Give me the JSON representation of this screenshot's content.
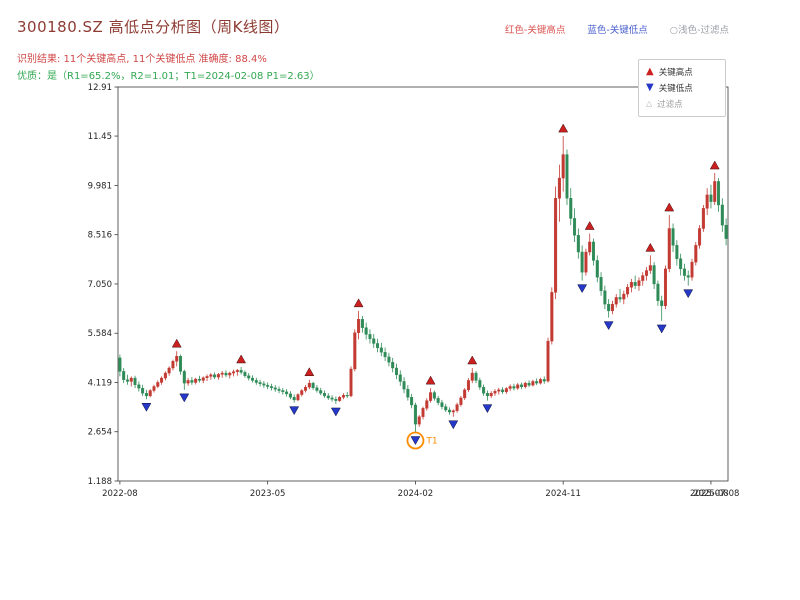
{
  "header": {
    "title": "300180.SZ 高低点分析图（周K线图）",
    "legend_top": {
      "high": "红色-关键高点",
      "low": "蓝色-关键低点",
      "filter": "○浅色-过滤点"
    },
    "result_line": "识别结果: 11个关键高点, 11个关键低点  准确度: 88.4%",
    "quality_line": "优质：是（R1=65.2%，R2=1.01；T1=2024-02-08 P1=2.63）"
  },
  "colors": {
    "up_candle": "#c23a32",
    "down_candle": "#2e8b57",
    "key_high": "#cc2020",
    "key_low": "#2538c8",
    "t1": "#ff8c00",
    "axis": "#3a3a3a",
    "tick_text": "#262626",
    "title_text": "#8d3b32",
    "result_text": "#d04545",
    "quality_text": "#33a853"
  },
  "inner_legend": {
    "items": [
      {
        "label": "关键高点",
        "marker": "up-triangle",
        "color": "#cc2020"
      },
      {
        "label": "关键低点",
        "marker": "down-triangle",
        "color": "#2538c8"
      },
      {
        "label": "过滤点",
        "marker": "open-triangle",
        "color": "#b5b5b5"
      }
    ]
  },
  "chart_data": {
    "type": "candlestick",
    "title": "300180.SZ 高低点分析图（周K线图）",
    "ylim": [
      1.188,
      12.91
    ],
    "grid": false,
    "y_ticks": [
      {
        "label": "1.188",
        "value": 1.188
      },
      {
        "label": "2.654",
        "value": 2.654
      },
      {
        "label": "4.119",
        "value": 4.119
      },
      {
        "label": "5.584",
        "value": 5.584
      },
      {
        "label": "7.050",
        "value": 7.05
      },
      {
        "label": "8.516",
        "value": 8.516
      },
      {
        "label": "9.981",
        "value": 9.981
      },
      {
        "label": "11.45",
        "value": 11.45
      },
      {
        "label": "12.91",
        "value": 12.91
      }
    ],
    "x_ticks": [
      {
        "label": "2022-08",
        "week": 0
      },
      {
        "label": "2023-05",
        "week": 39
      },
      {
        "label": "2024-02",
        "week": 78
      },
      {
        "label": "2024-11",
        "week": 117
      },
      {
        "label": "2025-08",
        "week": 156
      }
    ],
    "extra_x_label": {
      "label": "2025-07-08",
      "week": 157
    },
    "candles": [
      [
        4.85,
        4.95,
        4.3,
        4.45
      ],
      [
        4.45,
        4.55,
        4.1,
        4.2
      ],
      [
        4.2,
        4.35,
        4.05,
        4.15
      ],
      [
        4.15,
        4.3,
        4.0,
        4.25
      ],
      [
        4.25,
        4.32,
        3.95,
        4.05
      ],
      [
        4.05,
        4.15,
        3.85,
        3.95
      ],
      [
        3.95,
        4.05,
        3.72,
        3.8
      ],
      [
        3.8,
        3.9,
        3.62,
        3.72
      ],
      [
        3.72,
        3.92,
        3.68,
        3.88
      ],
      [
        3.88,
        4.05,
        3.82,
        4.0
      ],
      [
        4.0,
        4.18,
        3.95,
        4.12
      ],
      [
        4.12,
        4.3,
        4.05,
        4.25
      ],
      [
        4.25,
        4.45,
        4.18,
        4.4
      ],
      [
        4.4,
        4.6,
        4.32,
        4.55
      ],
      [
        4.55,
        4.8,
        4.48,
        4.75
      ],
      [
        4.75,
        5.05,
        4.6,
        4.9
      ],
      [
        4.9,
        4.95,
        4.35,
        4.45
      ],
      [
        4.45,
        4.5,
        3.9,
        4.1
      ],
      [
        4.1,
        4.25,
        4.02,
        4.18
      ],
      [
        4.18,
        4.28,
        4.05,
        4.12
      ],
      [
        4.12,
        4.26,
        4.06,
        4.22
      ],
      [
        4.22,
        4.32,
        4.12,
        4.18
      ],
      [
        4.18,
        4.3,
        4.1,
        4.26
      ],
      [
        4.26,
        4.36,
        4.16,
        4.3
      ],
      [
        4.3,
        4.4,
        4.2,
        4.35
      ],
      [
        4.35,
        4.42,
        4.22,
        4.28
      ],
      [
        4.28,
        4.4,
        4.2,
        4.36
      ],
      [
        4.36,
        4.46,
        4.26,
        4.4
      ],
      [
        4.4,
        4.48,
        4.28,
        4.34
      ],
      [
        4.34,
        4.44,
        4.24,
        4.4
      ],
      [
        4.4,
        4.5,
        4.3,
        4.44
      ],
      [
        4.44,
        4.52,
        4.32,
        4.48
      ],
      [
        4.48,
        4.58,
        4.36,
        4.42
      ],
      [
        4.42,
        4.48,
        4.26,
        4.32
      ],
      [
        4.32,
        4.4,
        4.18,
        4.25
      ],
      [
        4.25,
        4.33,
        4.12,
        4.18
      ],
      [
        4.18,
        4.26,
        4.05,
        4.12
      ],
      [
        4.12,
        4.2,
        4.0,
        4.08
      ],
      [
        4.08,
        4.16,
        3.96,
        4.04
      ],
      [
        4.04,
        4.12,
        3.92,
        4.0
      ],
      [
        4.0,
        4.08,
        3.88,
        3.96
      ],
      [
        3.96,
        4.04,
        3.84,
        3.92
      ],
      [
        3.92,
        4.0,
        3.8,
        3.88
      ],
      [
        3.88,
        3.96,
        3.76,
        3.84
      ],
      [
        3.84,
        3.92,
        3.7,
        3.78
      ],
      [
        3.78,
        3.86,
        3.62,
        3.68
      ],
      [
        3.68,
        3.76,
        3.52,
        3.6
      ],
      [
        3.6,
        3.8,
        3.56,
        3.76
      ],
      [
        3.76,
        3.92,
        3.7,
        3.88
      ],
      [
        3.88,
        4.04,
        3.82,
        3.98
      ],
      [
        3.98,
        4.2,
        3.92,
        4.1
      ],
      [
        4.1,
        4.14,
        3.9,
        3.96
      ],
      [
        3.96,
        4.04,
        3.82,
        3.88
      ],
      [
        3.88,
        3.96,
        3.74,
        3.8
      ],
      [
        3.8,
        3.88,
        3.66,
        3.72
      ],
      [
        3.72,
        3.8,
        3.6,
        3.66
      ],
      [
        3.66,
        3.74,
        3.55,
        3.62
      ],
      [
        3.62,
        3.7,
        3.48,
        3.58
      ],
      [
        3.58,
        3.72,
        3.54,
        3.68
      ],
      [
        3.68,
        3.8,
        3.62,
        3.74
      ],
      [
        3.74,
        3.84,
        3.66,
        3.72
      ],
      [
        3.72,
        4.6,
        3.68,
        4.52
      ],
      [
        4.52,
        5.7,
        4.45,
        5.6
      ],
      [
        5.6,
        6.25,
        5.4,
        6.0
      ],
      [
        6.0,
        6.1,
        5.6,
        5.75
      ],
      [
        5.75,
        5.9,
        5.4,
        5.55
      ],
      [
        5.55,
        5.7,
        5.28,
        5.42
      ],
      [
        5.42,
        5.56,
        5.15,
        5.28
      ],
      [
        5.28,
        5.42,
        5.02,
        5.15
      ],
      [
        5.15,
        5.3,
        4.9,
        5.02
      ],
      [
        5.02,
        5.16,
        4.76,
        4.88
      ],
      [
        4.88,
        5.0,
        4.6,
        4.72
      ],
      [
        4.72,
        4.85,
        4.42,
        4.55
      ],
      [
        4.55,
        4.68,
        4.22,
        4.35
      ],
      [
        4.35,
        4.48,
        4.02,
        4.15
      ],
      [
        4.15,
        4.28,
        3.8,
        3.92
      ],
      [
        3.92,
        4.04,
        3.58,
        3.68
      ],
      [
        3.68,
        3.78,
        3.35,
        3.45
      ],
      [
        3.45,
        3.52,
        2.63,
        2.88
      ],
      [
        2.88,
        3.15,
        2.8,
        3.1
      ],
      [
        3.1,
        3.4,
        3.02,
        3.35
      ],
      [
        3.35,
        3.65,
        3.28,
        3.58
      ],
      [
        3.58,
        3.95,
        3.52,
        3.82
      ],
      [
        3.82,
        3.88,
        3.58,
        3.65
      ],
      [
        3.65,
        3.72,
        3.44,
        3.52
      ],
      [
        3.52,
        3.6,
        3.32,
        3.4
      ],
      [
        3.4,
        3.48,
        3.24,
        3.3
      ],
      [
        3.3,
        3.38,
        3.16,
        3.24
      ],
      [
        3.24,
        3.32,
        3.1,
        3.28
      ],
      [
        3.28,
        3.52,
        3.22,
        3.46
      ],
      [
        3.46,
        3.72,
        3.4,
        3.66
      ],
      [
        3.66,
        3.95,
        3.6,
        3.9
      ],
      [
        3.9,
        4.25,
        3.84,
        4.18
      ],
      [
        4.18,
        4.55,
        4.1,
        4.4
      ],
      [
        4.4,
        4.46,
        4.1,
        4.18
      ],
      [
        4.18,
        4.26,
        3.9,
        3.98
      ],
      [
        3.98,
        4.06,
        3.72,
        3.8
      ],
      [
        3.8,
        3.88,
        3.58,
        3.72
      ],
      [
        3.72,
        3.86,
        3.66,
        3.8
      ],
      [
        3.8,
        3.92,
        3.72,
        3.86
      ],
      [
        3.86,
        3.96,
        3.76,
        3.9
      ],
      [
        3.9,
        3.98,
        3.78,
        3.84
      ],
      [
        3.84,
        3.98,
        3.78,
        3.94
      ],
      [
        3.94,
        4.06,
        3.86,
        4.0
      ],
      [
        4.0,
        4.08,
        3.88,
        3.95
      ],
      [
        3.95,
        4.1,
        3.9,
        4.05
      ],
      [
        4.05,
        4.12,
        3.92,
        3.99
      ],
      [
        3.99,
        4.14,
        3.94,
        4.1
      ],
      [
        4.1,
        4.18,
        3.98,
        4.04
      ],
      [
        4.04,
        4.2,
        4.0,
        4.15
      ],
      [
        4.15,
        4.24,
        4.04,
        4.1
      ],
      [
        4.1,
        4.26,
        4.06,
        4.21
      ],
      [
        4.21,
        4.3,
        4.08,
        4.16
      ],
      [
        4.16,
        5.45,
        4.12,
        5.35
      ],
      [
        5.35,
        6.95,
        5.25,
        6.8
      ],
      [
        6.8,
        9.95,
        6.6,
        9.6
      ],
      [
        9.6,
        10.6,
        8.9,
        10.2
      ],
      [
        10.2,
        11.45,
        9.8,
        10.9
      ],
      [
        10.9,
        11.05,
        9.4,
        9.6
      ],
      [
        9.6,
        9.9,
        8.8,
        9.0
      ],
      [
        9.0,
        9.3,
        8.3,
        8.5
      ],
      [
        8.5,
        8.7,
        7.8,
        8.0
      ],
      [
        8.0,
        8.2,
        7.15,
        7.4
      ],
      [
        7.4,
        8.1,
        7.3,
        8.0
      ],
      [
        8.0,
        8.55,
        7.9,
        8.3
      ],
      [
        8.3,
        8.4,
        7.6,
        7.75
      ],
      [
        7.75,
        7.9,
        7.1,
        7.25
      ],
      [
        7.25,
        7.4,
        6.7,
        6.85
      ],
      [
        6.85,
        7.0,
        6.3,
        6.45
      ],
      [
        6.45,
        6.6,
        6.05,
        6.25
      ],
      [
        6.25,
        6.55,
        6.15,
        6.45
      ],
      [
        6.45,
        6.75,
        6.35,
        6.65
      ],
      [
        6.65,
        6.9,
        6.5,
        6.6
      ],
      [
        6.6,
        6.85,
        6.45,
        6.75
      ],
      [
        6.75,
        7.05,
        6.65,
        6.95
      ],
      [
        6.95,
        7.2,
        6.8,
        7.1
      ],
      [
        7.1,
        7.3,
        6.9,
        7.0
      ],
      [
        7.0,
        7.25,
        6.85,
        7.15
      ],
      [
        7.15,
        7.4,
        7.0,
        7.3
      ],
      [
        7.3,
        7.55,
        7.15,
        7.45
      ],
      [
        7.45,
        7.9,
        7.35,
        7.6
      ],
      [
        7.6,
        7.7,
        6.9,
        7.05
      ],
      [
        7.05,
        7.15,
        6.4,
        6.55
      ],
      [
        6.55,
        6.7,
        5.95,
        6.4
      ],
      [
        6.4,
        7.6,
        6.3,
        7.5
      ],
      [
        7.5,
        9.1,
        7.4,
        8.7
      ],
      [
        8.7,
        8.85,
        8.0,
        8.2
      ],
      [
        8.2,
        8.35,
        7.6,
        7.8
      ],
      [
        7.8,
        7.95,
        7.3,
        7.5
      ],
      [
        7.5,
        7.65,
        7.15,
        7.3
      ],
      [
        7.3,
        7.45,
        7.0,
        7.25
      ],
      [
        7.25,
        7.8,
        7.15,
        7.7
      ],
      [
        7.7,
        8.3,
        7.6,
        8.2
      ],
      [
        8.2,
        8.8,
        8.1,
        8.7
      ],
      [
        8.7,
        9.4,
        8.6,
        9.3
      ],
      [
        9.3,
        9.9,
        9.1,
        9.7
      ],
      [
        9.7,
        10.0,
        9.3,
        9.5
      ],
      [
        9.5,
        10.35,
        9.4,
        10.1
      ],
      [
        10.1,
        10.2,
        9.2,
        9.4
      ],
      [
        9.4,
        9.6,
        8.6,
        8.8
      ],
      [
        8.8,
        9.0,
        8.2,
        8.4
      ]
    ],
    "key_highs": [
      [
        15,
        5.05
      ],
      [
        32,
        4.58
      ],
      [
        50,
        4.2
      ],
      [
        63,
        6.25
      ],
      [
        82,
        3.95
      ],
      [
        93,
        4.55
      ],
      [
        117,
        11.45
      ],
      [
        124,
        8.55
      ],
      [
        140,
        7.9
      ],
      [
        145,
        9.1
      ],
      [
        157,
        10.35
      ]
    ],
    "key_lows": [
      [
        7,
        3.62
      ],
      [
        17,
        3.9
      ],
      [
        46,
        3.52
      ],
      [
        57,
        3.48
      ],
      [
        78,
        2.63
      ],
      [
        88,
        3.1
      ],
      [
        97,
        3.58
      ],
      [
        122,
        7.15
      ],
      [
        129,
        6.05
      ],
      [
        143,
        5.95
      ],
      [
        150,
        7.0
      ]
    ],
    "filtered_points": [],
    "t1": {
      "week": 78,
      "price": 2.63,
      "label": "T1",
      "date": "2024-02-08"
    }
  }
}
